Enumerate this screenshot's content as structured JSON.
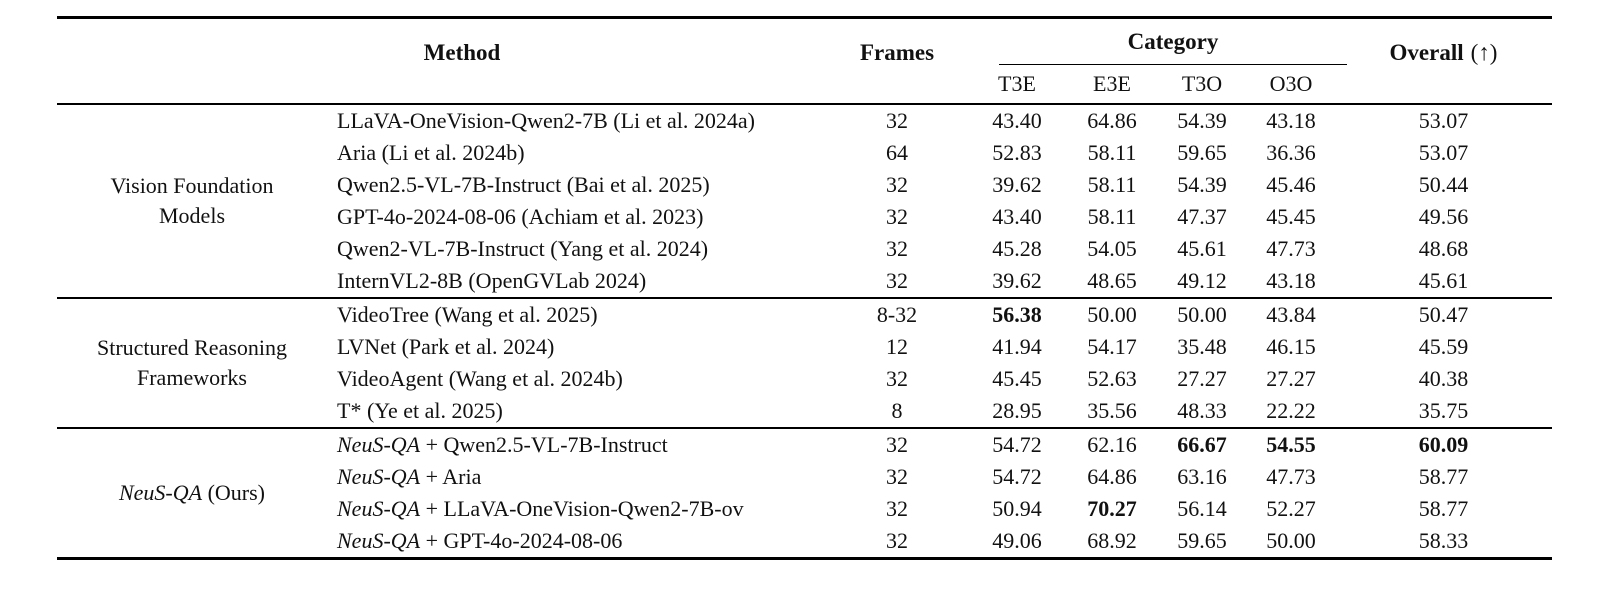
{
  "page": {
    "background": "#ffffff",
    "text_color": "#111111",
    "rule_color": "#000000"
  },
  "table": {
    "header": {
      "method": "Method",
      "frames": "Frames",
      "category": "Category",
      "category_cols": [
        "T3E",
        "E3E",
        "T3O",
        "O3O"
      ],
      "overall": "Overall",
      "overall_suffix": "(↑)"
    },
    "value_keys": [
      "t3e",
      "e3e",
      "t3o",
      "o3o",
      "overall"
    ],
    "groups": [
      {
        "label_lines": [
          [
            {
              "text": "Vision Foundation",
              "italic": false
            }
          ],
          [
            {
              "text": "Models",
              "italic": false
            }
          ]
        ],
        "rows": [
          {
            "method": [
              {
                "text": "LLaVA-OneVision-Qwen2-7B (Li et al. 2024a)",
                "italic": false
              }
            ],
            "frames": "32",
            "values": {
              "t3e": "43.40",
              "e3e": "64.86",
              "t3o": "54.39",
              "o3o": "43.18",
              "overall": "53.07"
            },
            "bold": []
          },
          {
            "method": [
              {
                "text": "Aria (Li et al. 2024b)",
                "italic": false
              }
            ],
            "frames": "64",
            "values": {
              "t3e": "52.83",
              "e3e": "58.11",
              "t3o": "59.65",
              "o3o": "36.36",
              "overall": "53.07"
            },
            "bold": []
          },
          {
            "method": [
              {
                "text": "Qwen2.5-VL-7B-Instruct (Bai et al. 2025)",
                "italic": false
              }
            ],
            "frames": "32",
            "values": {
              "t3e": "39.62",
              "e3e": "58.11",
              "t3o": "54.39",
              "o3o": "45.46",
              "overall": "50.44"
            },
            "bold": []
          },
          {
            "method": [
              {
                "text": "GPT-4o-2024-08-06 (Achiam et al. 2023)",
                "italic": false
              }
            ],
            "frames": "32",
            "values": {
              "t3e": "43.40",
              "e3e": "58.11",
              "t3o": "47.37",
              "o3o": "45.45",
              "overall": "49.56"
            },
            "bold": []
          },
          {
            "method": [
              {
                "text": "Qwen2-VL-7B-Instruct (Yang et al. 2024)",
                "italic": false
              }
            ],
            "frames": "32",
            "values": {
              "t3e": "45.28",
              "e3e": "54.05",
              "t3o": "45.61",
              "o3o": "47.73",
              "overall": "48.68"
            },
            "bold": []
          },
          {
            "method": [
              {
                "text": "InternVL2-8B (OpenGVLab 2024)",
                "italic": false
              }
            ],
            "frames": "32",
            "values": {
              "t3e": "39.62",
              "e3e": "48.65",
              "t3o": "49.12",
              "o3o": "43.18",
              "overall": "45.61"
            },
            "bold": []
          }
        ]
      },
      {
        "label_lines": [
          [
            {
              "text": "Structured Reasoning",
              "italic": false
            }
          ],
          [
            {
              "text": "Frameworks",
              "italic": false
            }
          ]
        ],
        "rows": [
          {
            "method": [
              {
                "text": "VideoTree (Wang et al. 2025)",
                "italic": false
              }
            ],
            "frames": "8-32",
            "values": {
              "t3e": "56.38",
              "e3e": "50.00",
              "t3o": "50.00",
              "o3o": "43.84",
              "overall": "50.47"
            },
            "bold": [
              "t3e"
            ]
          },
          {
            "method": [
              {
                "text": "LVNet (Park et al. 2024)",
                "italic": false
              }
            ],
            "frames": "12",
            "values": {
              "t3e": "41.94",
              "e3e": "54.17",
              "t3o": "35.48",
              "o3o": "46.15",
              "overall": "45.59"
            },
            "bold": []
          },
          {
            "method": [
              {
                "text": "VideoAgent (Wang et al. 2024b)",
                "italic": false
              }
            ],
            "frames": "32",
            "values": {
              "t3e": "45.45",
              "e3e": "52.63",
              "t3o": "27.27",
              "o3o": "27.27",
              "overall": "40.38"
            },
            "bold": []
          },
          {
            "method": [
              {
                "text": "T* (Ye et al. 2025)",
                "italic": false
              }
            ],
            "frames": "8",
            "values": {
              "t3e": "28.95",
              "e3e": "35.56",
              "t3o": "48.33",
              "o3o": "22.22",
              "overall": "35.75"
            },
            "bold": []
          }
        ]
      },
      {
        "label_lines": [
          [
            {
              "text": "NeuS-QA",
              "italic": true
            },
            {
              "text": " (Ours)",
              "italic": false
            }
          ]
        ],
        "rows": [
          {
            "method": [
              {
                "text": "NeuS-QA",
                "italic": true
              },
              {
                "text": " + Qwen2.5-VL-7B-Instruct",
                "italic": false
              }
            ],
            "frames": "32",
            "values": {
              "t3e": "54.72",
              "e3e": "62.16",
              "t3o": "66.67",
              "o3o": "54.55",
              "overall": "60.09"
            },
            "bold": [
              "t3o",
              "o3o",
              "overall"
            ]
          },
          {
            "method": [
              {
                "text": "NeuS-QA",
                "italic": true
              },
              {
                "text": " + Aria",
                "italic": false
              }
            ],
            "frames": "32",
            "values": {
              "t3e": "54.72",
              "e3e": "64.86",
              "t3o": "63.16",
              "o3o": "47.73",
              "overall": "58.77"
            },
            "bold": []
          },
          {
            "method": [
              {
                "text": "NeuS-QA",
                "italic": true
              },
              {
                "text": " + LLaVA-OneVision-Qwen2-7B-ov",
                "italic": false
              }
            ],
            "frames": "32",
            "values": {
              "t3e": "50.94",
              "e3e": "70.27",
              "t3o": "56.14",
              "o3o": "52.27",
              "overall": "58.77"
            },
            "bold": [
              "e3e"
            ]
          },
          {
            "method": [
              {
                "text": "NeuS-QA",
                "italic": true
              },
              {
                "text": " + GPT-4o-2024-08-06",
                "italic": false
              }
            ],
            "frames": "32",
            "values": {
              "t3e": "49.06",
              "e3e": "68.92",
              "t3o": "59.65",
              "o3o": "50.00",
              "overall": "58.33"
            },
            "bold": []
          }
        ]
      }
    ]
  }
}
